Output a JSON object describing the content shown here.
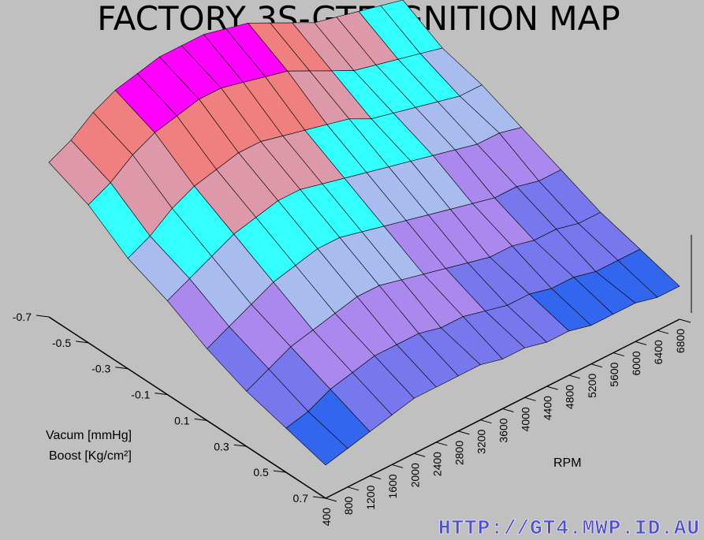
{
  "chart_data": {
    "type": "surface",
    "title": "FACTORY 3S-GTE IGNITION MAP",
    "xlabel": "RPM",
    "ylabel_line1": "Vacum [mmHg]",
    "ylabel_line2": "Boost [Kg/cm²]",
    "rpm": [
      400,
      800,
      1200,
      1600,
      2000,
      2400,
      2800,
      3200,
      3600,
      4000,
      4400,
      4800,
      5200,
      5600,
      6000,
      6400,
      6800
    ],
    "load": [
      -0.7,
      -0.5,
      -0.3,
      -0.1,
      0.1,
      0.3,
      0.5,
      0.7
    ],
    "rpm_tick_labels": [
      "400",
      "800",
      "1200",
      "1600",
      "2000",
      "2400",
      "2800",
      "3200",
      "3600",
      "4000",
      "4400",
      "4800",
      "5200",
      "5600",
      "6000",
      "6400",
      "6800"
    ],
    "load_tick_labels": [
      "-0.7",
      "-0.5",
      "-0.3",
      "-0.1",
      "0.1",
      "0.3",
      "0.5",
      "0.7"
    ],
    "values": [
      [
        33,
        35,
        38,
        40,
        41,
        42,
        42,
        42,
        41,
        40,
        38,
        36,
        34,
        33,
        32,
        31,
        30
      ],
      [
        30,
        32,
        35,
        37,
        38,
        39,
        39,
        38,
        37,
        36,
        34,
        32,
        30,
        29,
        28,
        27,
        26
      ],
      [
        25,
        27,
        30,
        32,
        33,
        34,
        34,
        33,
        32,
        31,
        30,
        28,
        27,
        26,
        25,
        24,
        24
      ],
      [
        22,
        24,
        26,
        28,
        29,
        30,
        30,
        29,
        28,
        27,
        26,
        25,
        24,
        23,
        22,
        22,
        21
      ],
      [
        18,
        20,
        22,
        24,
        25,
        26,
        26,
        25,
        24,
        23,
        22,
        21,
        20,
        19,
        19,
        18,
        18
      ],
      [
        15,
        17,
        19,
        20,
        21,
        22,
        22,
        21,
        20,
        19,
        18,
        17,
        17,
        16,
        16,
        15,
        15
      ],
      [
        13,
        14,
        16,
        17,
        18,
        18,
        18,
        17,
        17,
        16,
        15,
        15,
        14,
        14,
        13,
        13,
        13
      ],
      [
        11,
        12,
        13,
        14,
        15,
        15,
        15,
        15,
        14,
        14,
        13,
        13,
        12,
        12,
        12,
        11,
        11
      ]
    ],
    "color_bands": [
      "#3366ee",
      "#7777ee",
      "#aa88ee",
      "#a8bcf0",
      "#33ffff",
      "#dd99aa",
      "#f08080",
      "#ff00ff",
      "#ee0000"
    ],
    "background": "#c0c0c0",
    "watermark": "HTTP://GT4.MWP.ID.AU"
  }
}
